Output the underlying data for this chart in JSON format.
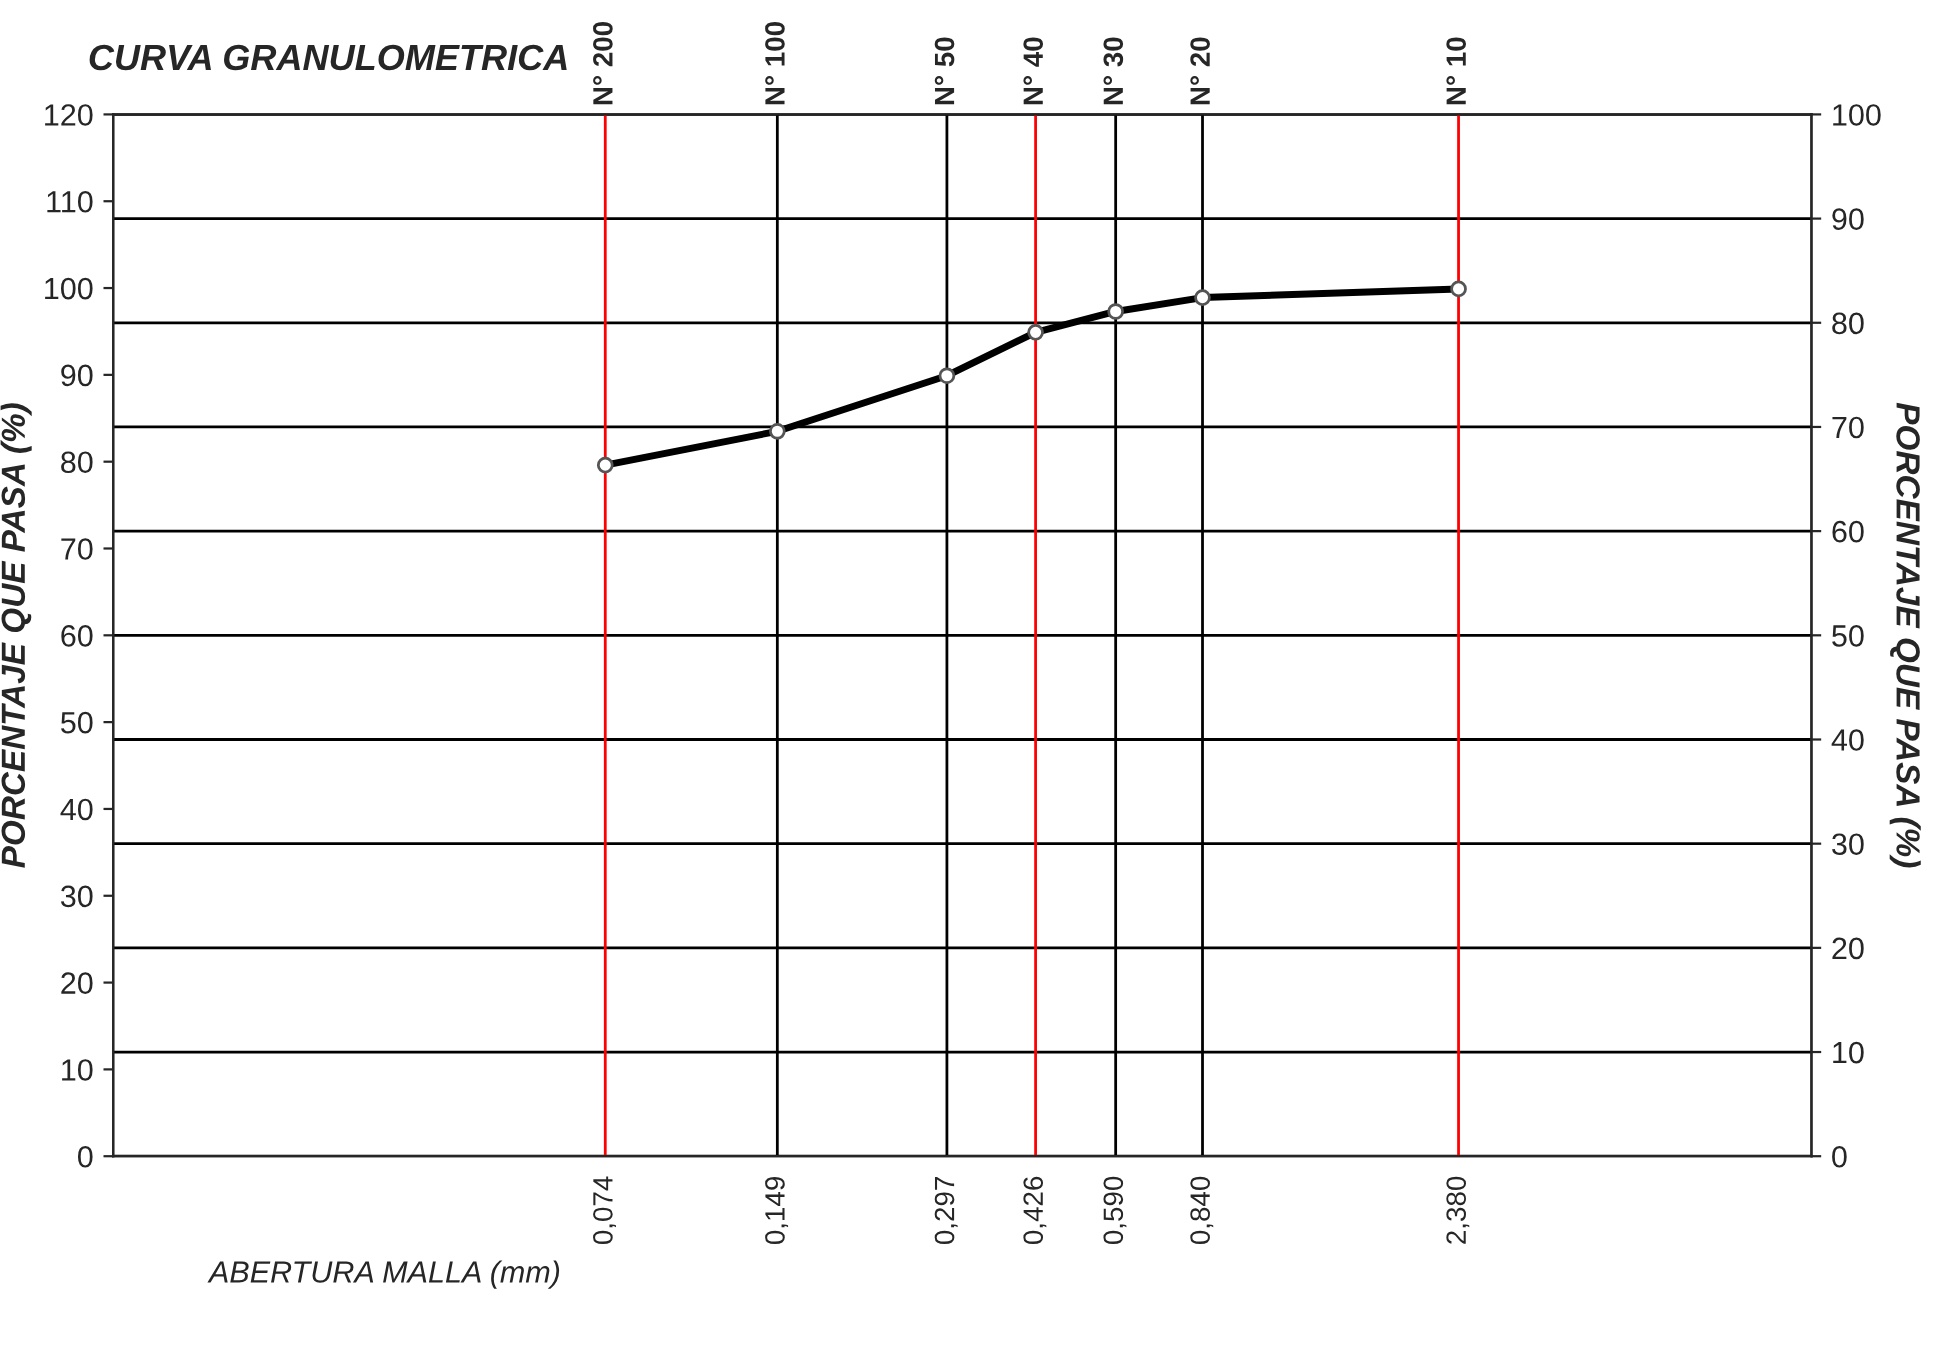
{
  "chart_data": {
    "type": "line",
    "title": "CURVA GRANULOMETRICA",
    "xlabel": "ABERTURA MALLA (mm)",
    "ylabel": "PORCENTAJE QUE PASA (%)",
    "y2label": "PORCENTAJE QUE PASA (%)",
    "x": [
      0.074,
      0.149,
      0.297,
      0.426,
      0.59,
      0.84,
      2.38
    ],
    "series": [
      {
        "color": "#000000",
        "values": [
          79.6,
          83.5,
          89.9,
          94.9,
          97.3,
          98.9,
          99.9
        ]
      }
    ],
    "log": "x",
    "xlim": [
      0.01,
      10
    ],
    "xticks": [
      {
        "value": 0.074,
        "label": "0,074"
      },
      {
        "value": 0.149,
        "label": "0,149"
      },
      {
        "value": 0.297,
        "label": "0,297"
      },
      {
        "value": 0.426,
        "label": "0,426"
      },
      {
        "value": 0.59,
        "label": "0,590"
      },
      {
        "value": 0.84,
        "label": "0,840"
      },
      {
        "value": 2.38,
        "label": "2,380"
      }
    ],
    "ref_lines": [
      {
        "axis": "x",
        "value": 0.074,
        "label": "N° 200",
        "color": "#ff0000"
      },
      {
        "axis": "x",
        "value": 0.149,
        "label": "N° 100",
        "color": "#000000"
      },
      {
        "axis": "x",
        "value": 0.297,
        "label": "N° 50",
        "color": "#000000"
      },
      {
        "axis": "x",
        "value": 0.426,
        "label": "N° 40",
        "color": "#ff0000"
      },
      {
        "axis": "x",
        "value": 0.59,
        "label": "N° 30",
        "color": "#000000"
      },
      {
        "axis": "x",
        "value": 0.84,
        "label": "N° 20",
        "color": "#000000"
      },
      {
        "axis": "x",
        "value": 2.38,
        "label": "N° 10",
        "color": "#ff0000"
      }
    ],
    "ylim": [
      0,
      120
    ],
    "yticks": [
      0,
      10,
      20,
      30,
      40,
      50,
      60,
      70,
      80,
      90,
      100,
      110,
      120
    ],
    "y2lim": [
      0,
      100
    ],
    "y2ticks": [
      0,
      10,
      20,
      30,
      40,
      50,
      60,
      70,
      80,
      90,
      100
    ],
    "grid": "y",
    "marker": "circle",
    "line_style": "solid"
  }
}
